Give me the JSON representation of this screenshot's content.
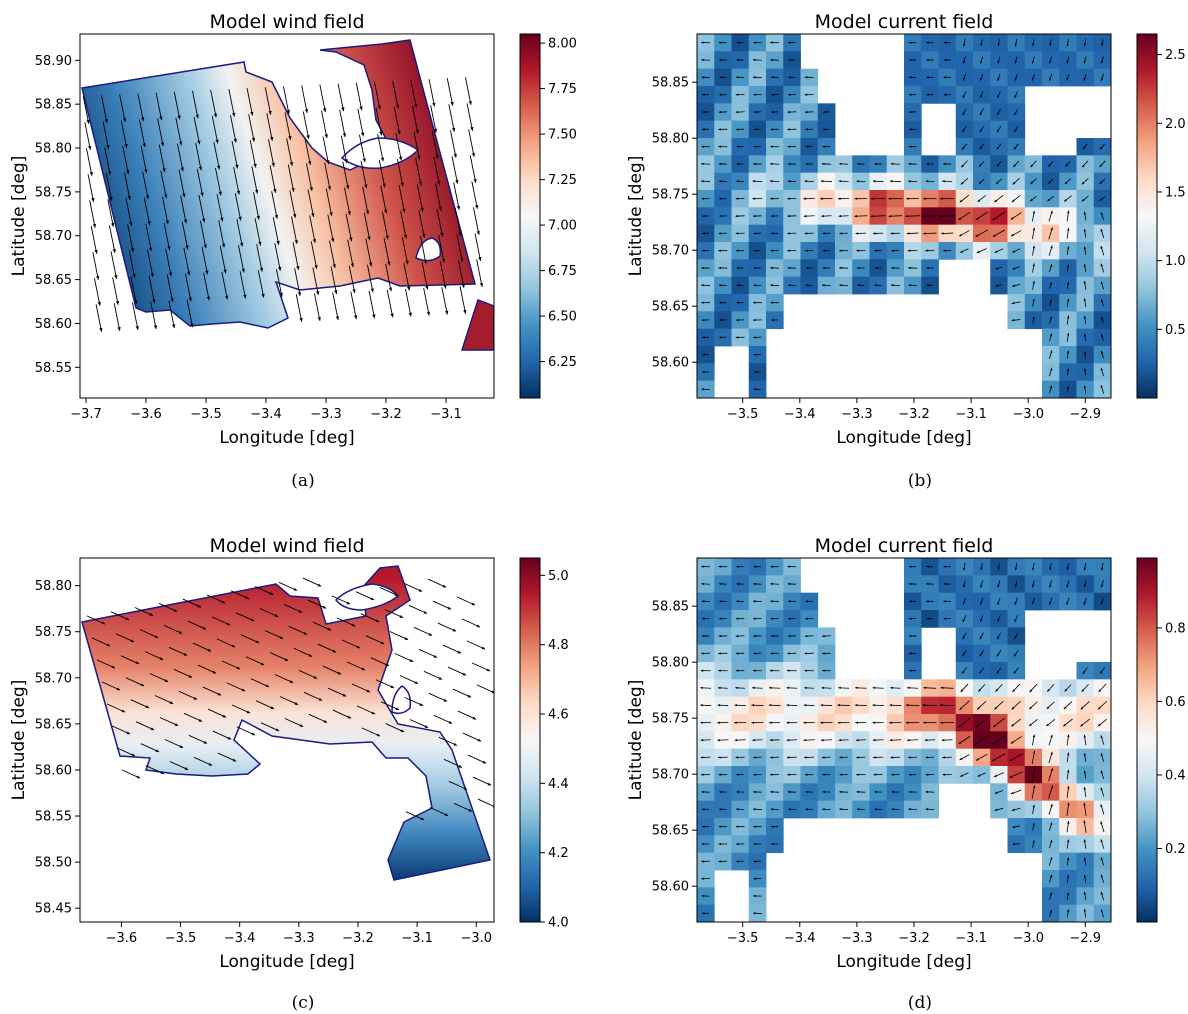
{
  "chart_data": [
    {
      "id": "a",
      "type": "heatmap",
      "title": "Model wind field",
      "xlabel": "Longitude [deg]",
      "ylabel": "Latitude [deg]",
      "caption": "(a)",
      "xlim": [
        -3.71,
        -3.02
      ],
      "ylim": [
        58.515,
        58.93
      ],
      "xticks": [
        -3.7,
        -3.6,
        -3.5,
        -3.4,
        -3.3,
        -3.2,
        -3.1
      ],
      "xtick_labels": [
        "−3.7",
        "−3.6",
        "−3.5",
        "−3.4",
        "−3.3",
        "−3.2",
        "−3.1"
      ],
      "yticks": [
        58.55,
        58.6,
        58.65,
        58.7,
        58.75,
        58.8,
        58.85,
        58.9
      ],
      "ytick_labels": [
        "58.55",
        "58.60",
        "58.65",
        "58.70",
        "58.75",
        "58.80",
        "58.85",
        "58.90"
      ],
      "colorbar": {
        "min": 6.05,
        "max": 8.05,
        "ticks": [
          6.25,
          6.5,
          6.75,
          7.0,
          7.25,
          7.5,
          7.75,
          8.0
        ],
        "tick_labels": [
          "6.25",
          "6.50",
          "6.75",
          "7.00",
          "7.25",
          "7.50",
          "7.75",
          "8.00"
        ]
      }
    },
    {
      "id": "b",
      "type": "heatmap",
      "title": "Model current field",
      "xlabel": "Longitude [deg]",
      "ylabel": "Latitude [deg]",
      "caption": "(b)",
      "xlim": [
        -3.58,
        -2.855
      ],
      "ylim": [
        58.568,
        58.893
      ],
      "xticks": [
        -3.5,
        -3.4,
        -3.3,
        -3.2,
        -3.1,
        -3.0,
        -2.9
      ],
      "xtick_labels": [
        "−3.5",
        "−3.4",
        "−3.3",
        "−3.2",
        "−3.1",
        "−3.0",
        "−2.9"
      ],
      "yticks": [
        58.6,
        58.65,
        58.7,
        58.75,
        58.8,
        58.85
      ],
      "ytick_labels": [
        "58.60",
        "58.65",
        "58.70",
        "58.75",
        "58.80",
        "58.85"
      ],
      "colorbar": {
        "min": 0.0,
        "max": 2.65,
        "ticks": [
          0.5,
          1.0,
          1.5,
          2.0,
          2.5
        ],
        "tick_labels": [
          "0.5",
          "1.0",
          "1.5",
          "2.0",
          "2.5"
        ]
      }
    },
    {
      "id": "c",
      "type": "heatmap",
      "title": "Model wind field",
      "xlabel": "Longitude [deg]",
      "ylabel": "Latitude [deg]",
      "caption": "(c)",
      "xlim": [
        -3.67,
        -2.97
      ],
      "ylim": [
        58.435,
        58.83
      ],
      "xticks": [
        -3.6,
        -3.5,
        -3.4,
        -3.3,
        -3.2,
        -3.1,
        -3.0
      ],
      "xtick_labels": [
        "−3.6",
        "−3.5",
        "−3.4",
        "−3.3",
        "−3.2",
        "−3.1",
        "−3.0"
      ],
      "yticks": [
        58.45,
        58.5,
        58.55,
        58.6,
        58.65,
        58.7,
        58.75,
        58.8
      ],
      "ytick_labels": [
        "58.45",
        "58.50",
        "58.55",
        "58.60",
        "58.65",
        "58.70",
        "58.75",
        "58.80"
      ],
      "colorbar": {
        "min": 4.0,
        "max": 5.05,
        "ticks": [
          4.0,
          4.2,
          4.4,
          4.6,
          4.8,
          5.0
        ],
        "tick_labels": [
          "4.0",
          "4.2",
          "4.4",
          "4.6",
          "4.8",
          "5.0"
        ]
      }
    },
    {
      "id": "d",
      "type": "heatmap",
      "title": "Model current field",
      "xlabel": "Longitude [deg]",
      "ylabel": "Latitude [deg]",
      "caption": "(d)",
      "xlim": [
        -3.58,
        -2.855
      ],
      "ylim": [
        58.568,
        58.893
      ],
      "xticks": [
        -3.5,
        -3.4,
        -3.3,
        -3.2,
        -3.1,
        -3.0,
        -2.9
      ],
      "xtick_labels": [
        "−3.5",
        "−3.4",
        "−3.3",
        "−3.2",
        "−3.1",
        "−3.0",
        "−2.9"
      ],
      "yticks": [
        58.6,
        58.65,
        58.7,
        58.75,
        58.8,
        58.85
      ],
      "ytick_labels": [
        "58.60",
        "58.65",
        "58.70",
        "58.75",
        "58.80",
        "58.85"
      ],
      "colorbar": {
        "min": 0.0,
        "max": 0.99,
        "ticks": [
          0.2,
          0.4,
          0.6,
          0.8
        ],
        "tick_labels": [
          "0.2",
          "0.4",
          "0.6",
          "0.8"
        ]
      }
    }
  ]
}
